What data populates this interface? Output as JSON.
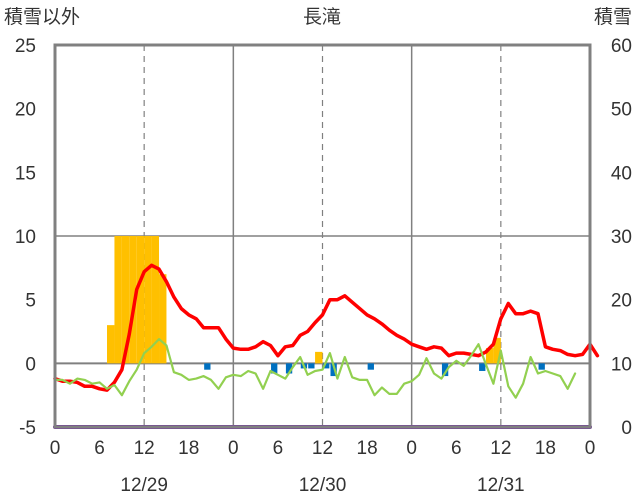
{
  "chart_data": {
    "type": "bar",
    "title": "長滝",
    "left_axis_title": "積雪以外",
    "right_axis_title": "積雪",
    "left_axis": {
      "min": -5,
      "max": 25,
      "ticks": [
        "25",
        "20",
        "15",
        "10",
        "5",
        "0",
        "-5"
      ]
    },
    "right_axis": {
      "min": 0,
      "max": 60,
      "ticks": [
        "60",
        "50",
        "40",
        "30",
        "20",
        "10",
        "0"
      ]
    },
    "x_axis": {
      "hour_min": 0,
      "hour_max": 72,
      "hour_ticks": [
        {
          "h": 0,
          "label": "0"
        },
        {
          "h": 6,
          "label": "6"
        },
        {
          "h": 12,
          "label": "12"
        },
        {
          "h": 18,
          "label": "18"
        },
        {
          "h": 24,
          "label": "0"
        },
        {
          "h": 30,
          "label": "6"
        },
        {
          "h": 36,
          "label": "12"
        },
        {
          "h": 42,
          "label": "18"
        },
        {
          "h": 48,
          "label": "0"
        },
        {
          "h": 54,
          "label": "6"
        },
        {
          "h": 60,
          "label": "12"
        },
        {
          "h": 66,
          "label": "18"
        },
        {
          "h": 72,
          "label": "0"
        }
      ],
      "day_labels": [
        {
          "h": 12,
          "label": "12/29"
        },
        {
          "h": 36,
          "label": "12/30"
        },
        {
          "h": 60,
          "label": "12/31"
        }
      ],
      "day_lines": [
        24,
        48
      ],
      "noon_lines": [
        12,
        36,
        60
      ]
    },
    "colors": {
      "snowfall": "#FFC000",
      "precip": "#0070C0",
      "temperature": "#FF0000",
      "temp_change": "#92D050",
      "snow_depth": "#7030A0",
      "zero_line": "#808080",
      "frame": "#808080",
      "grid": "#808080"
    },
    "series": [
      {
        "key": "snowfall",
        "kind": "bar",
        "axis": "left",
        "values": [
          {
            "h": 7.5,
            "v": 3
          },
          {
            "h": 8.5,
            "v": 10
          },
          {
            "h": 9.5,
            "v": 10
          },
          {
            "h": 10.5,
            "v": 10
          },
          {
            "h": 11.5,
            "v": 10
          },
          {
            "h": 12.5,
            "v": 10
          },
          {
            "h": 13.5,
            "v": 10
          },
          {
            "h": 14.5,
            "v": 7
          },
          {
            "h": 35.5,
            "v": 0.9
          },
          {
            "h": 58.5,
            "v": 1.2
          },
          {
            "h": 59.5,
            "v": 2
          }
        ]
      },
      {
        "key": "precip",
        "kind": "bar",
        "axis": "left",
        "values": [
          {
            "h": 20.5,
            "v": -0.5
          },
          {
            "h": 29.5,
            "v": -0.8
          },
          {
            "h": 31.5,
            "v": -0.8
          },
          {
            "h": 33.5,
            "v": -0.4
          },
          {
            "h": 34.5,
            "v": -0.4
          },
          {
            "h": 36.5,
            "v": -0.4
          },
          {
            "h": 37.5,
            "v": -1
          },
          {
            "h": 42.5,
            "v": -0.5
          },
          {
            "h": 52.5,
            "v": -1
          },
          {
            "h": 57.5,
            "v": -0.6
          },
          {
            "h": 65.5,
            "v": -0.5
          }
        ]
      },
      {
        "key": "temperature",
        "kind": "line",
        "axis": "left",
        "values": [
          -1.2,
          -1.4,
          -1.4,
          -1.5,
          -1.8,
          -1.8,
          -2.0,
          -2.1,
          -1.5,
          -0.5,
          2.3,
          5.8,
          7.2,
          7.7,
          7.4,
          6.4,
          5.2,
          4.3,
          3.8,
          3.5,
          2.8,
          2.8,
          2.8,
          1.9,
          1.2,
          1.1,
          1.1,
          1.3,
          1.7,
          1.4,
          0.6,
          1.3,
          1.4,
          2.2,
          2.5,
          3.2,
          3.8,
          5.0,
          5.0,
          5.3,
          4.8,
          4.3,
          3.8,
          3.5,
          3.1,
          2.6,
          2.2,
          1.9,
          1.5,
          1.3,
          1.1,
          1.3,
          1.2,
          0.6,
          0.8,
          0.8,
          0.7,
          0.6,
          0.9,
          1.5,
          3.5,
          4.7,
          3.9,
          3.9,
          4.1,
          3.9,
          1.3,
          1.1,
          1.0,
          0.7,
          0.6,
          0.7,
          1.5,
          0.6
        ]
      },
      {
        "key": "temp_change",
        "kind": "line",
        "axis": "left",
        "values": [
          -1.3,
          -1.3,
          -1.6,
          -1.2,
          -1.3,
          -1.6,
          -1.5,
          -2.0,
          -1.7,
          -2.5,
          -1.4,
          -0.5,
          0.8,
          1.3,
          1.9,
          1.4,
          -0.7,
          -0.9,
          -1.3,
          -1.2,
          -1.0,
          -1.3,
          -2.0,
          -1.1,
          -0.9,
          -1.0,
          -0.6,
          -0.8,
          -2.0,
          -0.6,
          -0.9,
          -1.2,
          -0.3,
          0.5,
          -0.9,
          -0.6,
          -0.5,
          0.8,
          -1.2,
          0.5,
          -1.1,
          -1.3,
          -1.3,
          -2.5,
          -1.9,
          -2.4,
          -2.4,
          -1.6,
          -1.4,
          -0.9,
          0.4,
          -0.8,
          -1.2,
          -0.3,
          0.2,
          -0.2,
          0.6,
          1.5,
          -0.1,
          -1.6,
          1.0,
          -1.8,
          -2.7,
          -1.6,
          0.5,
          -0.8,
          -0.6,
          -0.8,
          -1.0,
          -2.0,
          -0.8
        ]
      },
      {
        "key": "snow_depth",
        "kind": "line",
        "axis": "right",
        "values": [
          0,
          0
        ]
      }
    ]
  }
}
